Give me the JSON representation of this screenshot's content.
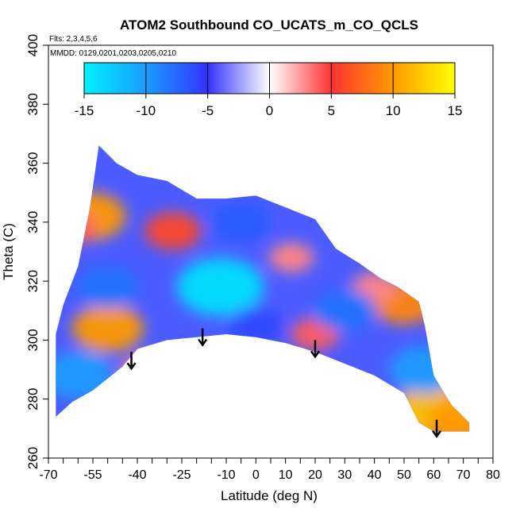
{
  "chart_data": {
    "type": "heatmap",
    "title": "ATOM2 Southbound CO_UCATS_m_CO_QCLS",
    "flights_note": "Flts: 2,3,4,5,6",
    "dates_note": "MMDD: 0129,0201,0203,0205,0210",
    "xlabel": "Latitude (deg N)",
    "ylabel": "Theta (C)",
    "xlim": [
      -70,
      80
    ],
    "ylim": [
      260,
      400
    ],
    "x_ticks": [
      -70,
      -55,
      -40,
      -25,
      -10,
      0,
      10,
      20,
      30,
      40,
      50,
      60,
      70,
      80
    ],
    "x_minor_ticks": [
      -70,
      -65,
      -60,
      -55,
      -50,
      -45,
      -40,
      -35,
      -30,
      -25,
      -20,
      -15,
      -10,
      -5,
      0,
      5,
      10,
      15,
      20,
      25,
      30,
      35,
      40,
      45,
      50,
      55,
      60,
      65,
      70,
      75,
      80
    ],
    "y_ticks": [
      260,
      280,
      300,
      320,
      340,
      360,
      380,
      400
    ],
    "colorbar": {
      "ticks": [
        -15,
        -10,
        -5,
        0,
        5,
        10,
        15
      ],
      "range": [
        -15,
        15
      ],
      "colors": [
        "#00f0ff",
        "#1a9cff",
        "#3333ff",
        "#ffffff",
        "#ff3333",
        "#ff9900",
        "#ffff00"
      ]
    },
    "domain_outline": [
      [
        -67.5,
        274
      ],
      [
        -67.5,
        302
      ],
      [
        -65,
        312
      ],
      [
        -60,
        325
      ],
      [
        -56,
        345
      ],
      [
        -53,
        366
      ],
      [
        -47,
        360
      ],
      [
        -40,
        356
      ],
      [
        -30,
        354
      ],
      [
        -20,
        348
      ],
      [
        -10,
        348
      ],
      [
        0,
        349
      ],
      [
        10,
        345
      ],
      [
        20,
        341
      ],
      [
        27,
        331
      ],
      [
        35,
        326
      ],
      [
        42,
        321
      ],
      [
        48,
        318
      ],
      [
        55,
        313
      ],
      [
        57,
        305
      ],
      [
        60,
        288
      ],
      [
        66,
        278
      ],
      [
        72,
        272
      ],
      [
        72,
        269
      ],
      [
        60,
        269
      ],
      [
        55,
        272
      ],
      [
        50,
        282
      ],
      [
        40,
        288
      ],
      [
        30,
        292
      ],
      [
        20,
        296
      ],
      [
        10,
        299
      ],
      [
        0,
        301
      ],
      [
        -10,
        302
      ],
      [
        -20,
        301
      ],
      [
        -30,
        300
      ],
      [
        -40,
        297
      ],
      [
        -45,
        291
      ],
      [
        -50,
        287
      ],
      [
        -55,
        283
      ],
      [
        -62,
        279
      ]
    ],
    "anomalies": [
      {
        "lat": -56,
        "theta": 342,
        "value": 10
      },
      {
        "lat": -62,
        "theta": 338,
        "value": 4
      },
      {
        "lat": -28,
        "theta": 337,
        "value": 6
      },
      {
        "lat": -50,
        "theta": 304,
        "value": 10
      },
      {
        "lat": -38,
        "theta": 290,
        "value": 3
      },
      {
        "lat": 20,
        "theta": 302,
        "value": 4
      },
      {
        "lat": 50,
        "theta": 313,
        "value": 9
      },
      {
        "lat": 40,
        "theta": 318,
        "value": 3
      },
      {
        "lat": 12,
        "theta": 328,
        "value": 3
      },
      {
        "lat": 60,
        "theta": 276,
        "value": 12
      },
      {
        "lat": 70,
        "theta": 273,
        "value": 10
      },
      {
        "lat": -12,
        "theta": 318,
        "value": -14
      },
      {
        "lat": -50,
        "theta": 318,
        "value": -8
      },
      {
        "lat": 30,
        "theta": 310,
        "value": -8
      },
      {
        "lat": 57,
        "theta": 290,
        "value": -10
      },
      {
        "lat": -5,
        "theta": 340,
        "value": -7
      },
      {
        "lat": -60,
        "theta": 288,
        "value": -10
      },
      {
        "lat": 0,
        "theta": 305,
        "value": -6
      }
    ],
    "arrows": [
      {
        "lat": -42,
        "theta": 296
      },
      {
        "lat": -18,
        "theta": 304
      },
      {
        "lat": 20,
        "theta": 300
      },
      {
        "lat": 61,
        "theta": 273
      }
    ]
  }
}
